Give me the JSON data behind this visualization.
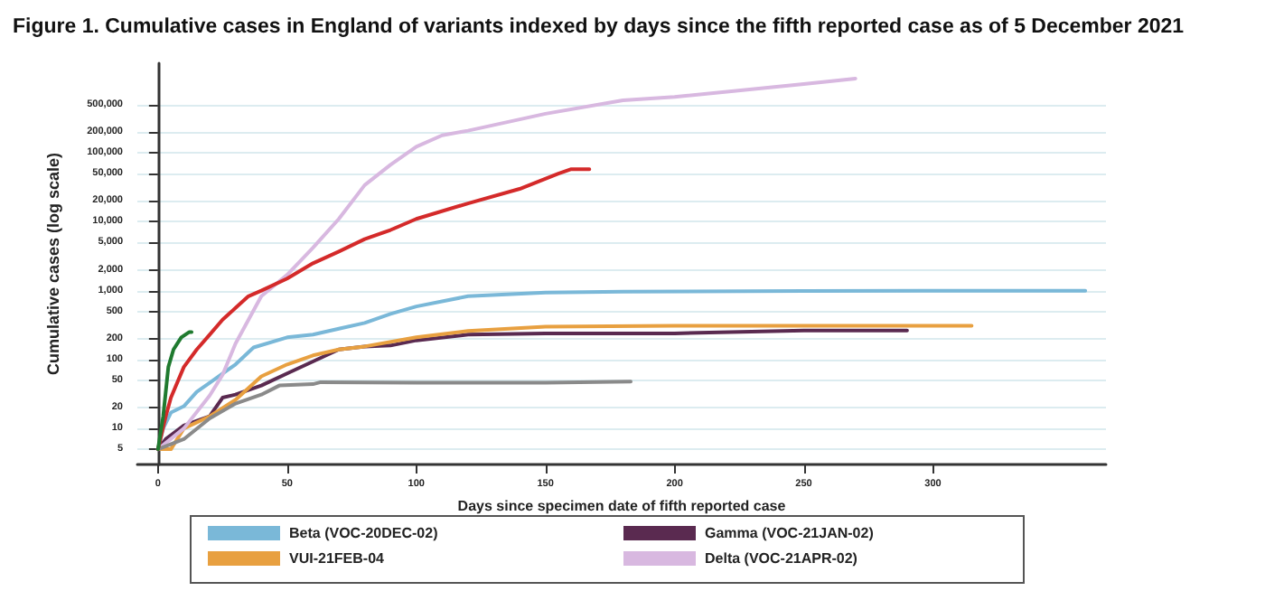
{
  "chart_data": {
    "type": "line",
    "title": "Figure 1. Cumulative cases in England of variants indexed by days since the fifth reported case as of 5 December 2021",
    "xlabel": "Days since specimen date of fifth reported case",
    "ylabel": "Cumulative cases (log scale)",
    "log": "y",
    "grid": "y",
    "legend": "bottom",
    "line_style": "solid",
    "marker": "none",
    "xlim": [
      -8,
      367
    ],
    "xticks": [
      0,
      50,
      100,
      150,
      200,
      250,
      300
    ],
    "ylim": [
      3,
      2000000
    ],
    "yticks": [
      5,
      10,
      20,
      50,
      100,
      200,
      500,
      {
        "value": 1000,
        "label": "1,000"
      },
      {
        "value": 2000,
        "label": "2,000"
      },
      {
        "value": 5000,
        "label": "5,000"
      },
      {
        "value": 10000,
        "label": "10,000"
      },
      {
        "value": 20000,
        "label": "20,000"
      },
      {
        "value": 50000,
        "label": "50,000"
      },
      {
        "value": 100000,
        "label": "100,000"
      },
      {
        "value": 200000,
        "label": "200,000"
      },
      {
        "value": 500000,
        "label": "500,000"
      }
    ],
    "series": [
      {
        "name": "Beta (VOC-20DEC-02)",
        "color": "#7ab8d8",
        "x": [
          0,
          2,
          5,
          10,
          15,
          20,
          30,
          37,
          50,
          60,
          70,
          80,
          90,
          100,
          120,
          150,
          180,
          250,
          359
        ],
        "values": [
          5,
          10,
          17,
          21,
          34,
          46,
          85,
          150,
          210,
          230,
          280,
          340,
          460,
          590,
          830,
          940,
          970,
          990,
          1000
        ]
      },
      {
        "name": "Gamma (VOC-21JAN-02)",
        "color": "#5a2a50",
        "x": [
          0,
          3,
          5,
          10,
          20,
          25,
          30,
          40,
          50,
          60,
          70,
          80,
          90,
          100,
          120,
          150,
          200,
          250,
          290
        ],
        "values": [
          5,
          7,
          8,
          11,
          15,
          28,
          31,
          42,
          63,
          94,
          140,
          155,
          160,
          190,
          230,
          240,
          240,
          265,
          265
        ]
      },
      {
        "name": "VUI-21FEB-04",
        "color": "#e8a040",
        "x": [
          0,
          5,
          10,
          20,
          30,
          40,
          50,
          60,
          70,
          80,
          100,
          120,
          150,
          200,
          315
        ],
        "values": [
          5,
          5,
          10,
          15,
          26,
          57,
          85,
          115,
          140,
          155,
          210,
          260,
          300,
          310,
          310
        ]
      },
      {
        "name": "Delta (VOC-21APR-02)",
        "color": "#d8b8e0",
        "x": [
          0,
          10,
          20,
          25,
          30,
          40,
          50,
          60,
          70,
          80,
          90,
          100,
          110,
          120,
          150,
          180,
          200,
          250,
          270
        ],
        "values": [
          5,
          10,
          30,
          60,
          170,
          830,
          1700,
          4200,
          11000,
          34000,
          67000,
          123000,
          180000,
          210000,
          370000,
          580000,
          650000,
          1000000,
          1200000
        ]
      },
      {
        "color": "#8a8a8a",
        "x": [
          0,
          10,
          20,
          30,
          40,
          47,
          60,
          63,
          100,
          150,
          183
        ],
        "values": [
          5,
          7,
          14,
          23,
          31,
          42,
          44,
          47,
          46,
          46,
          48
        ]
      },
      {
        "color": "#d42a2a",
        "x": [
          0,
          3,
          5,
          10,
          15,
          20,
          25,
          30,
          35,
          40,
          50,
          60,
          70,
          80,
          90,
          100,
          120,
          140,
          155,
          160,
          167
        ],
        "values": [
          5,
          15,
          28,
          78,
          140,
          230,
          380,
          560,
          830,
          1000,
          1500,
          2500,
          3700,
          5600,
          7600,
          11000,
          18500,
          30000,
          50000,
          58000,
          58000
        ]
      },
      {
        "color": "#1f7a2f",
        "x": [
          0,
          2,
          4,
          6,
          9,
          12,
          13
        ],
        "values": [
          5,
          15,
          78,
          140,
          210,
          250,
          250
        ]
      }
    ]
  }
}
